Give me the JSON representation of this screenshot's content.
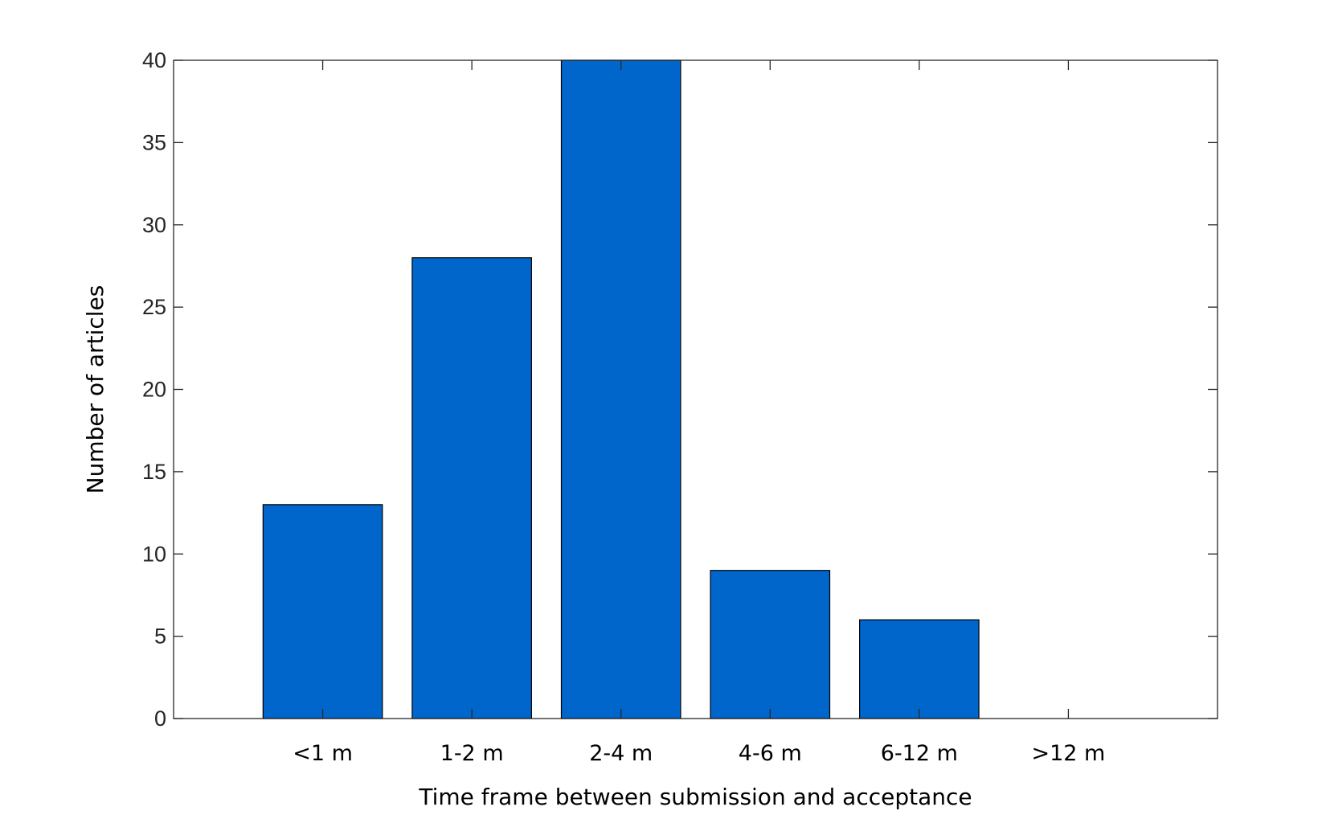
{
  "chart_data": {
    "type": "bar",
    "title": "",
    "xlabel": "Time frame between submission and acceptance",
    "ylabel": "Number of articles",
    "categories": [
      "<1 m",
      "1-2 m",
      "2-4 m",
      "4-6 m",
      "6-12 m",
      ">12 m"
    ],
    "values": [
      13,
      28,
      40,
      9,
      6,
      0
    ],
    "ylim": [
      0,
      40
    ],
    "xlim": [
      0,
      7
    ],
    "yticks": [
      0,
      5,
      10,
      15,
      20,
      25,
      30,
      35,
      40
    ],
    "grid": false,
    "legend": "none",
    "bar_color": "#0066cc",
    "bar_edge_color": "#000000",
    "axis_color": "#262626"
  }
}
